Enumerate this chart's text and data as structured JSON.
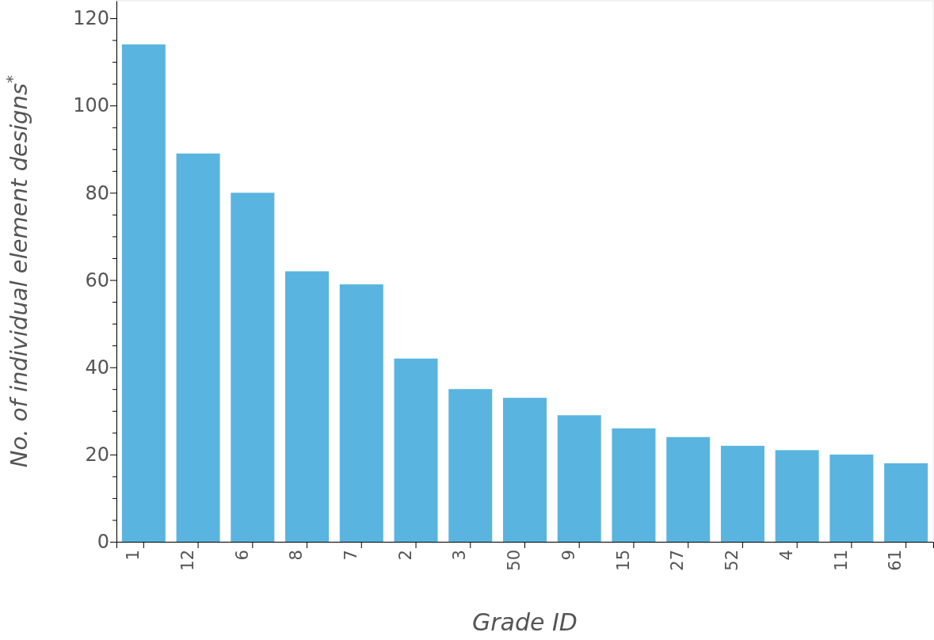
{
  "chart_data": {
    "type": "bar",
    "xlabel": "Grade ID",
    "ylabel": "No. of individual element designs$^{*}$",
    "categories": [
      "1",
      "12",
      "6",
      "8",
      "7",
      "2",
      "3",
      "50",
      "9",
      "15",
      "27",
      "52",
      "4",
      "11",
      "61"
    ],
    "values": [
      114,
      89,
      80,
      62,
      59,
      42,
      35,
      33,
      29,
      26,
      24,
      22,
      21,
      20,
      18
    ],
    "color": "#5ab4e0",
    "ylim": [
      0,
      124
    ],
    "yticks": [
      0,
      {
        "value": 5,
        "label": null
      },
      {
        "value": 10,
        "label": null
      },
      {
        "value": 15,
        "label": null
      },
      20,
      {
        "value": 25,
        "label": null
      },
      {
        "value": 30,
        "label": null
      },
      {
        "value": 35,
        "label": null
      },
      40,
      {
        "value": 45,
        "label": null
      },
      {
        "value": 50,
        "label": null
      },
      {
        "value": 55,
        "label": null
      },
      60,
      {
        "value": 65,
        "label": null
      },
      {
        "value": 70,
        "label": null
      },
      {
        "value": 75,
        "label": null
      },
      80,
      {
        "value": 85,
        "label": null
      },
      {
        "value": 90,
        "label": null
      },
      {
        "value": 95,
        "label": null
      },
      100,
      {
        "value": 105,
        "label": null
      },
      {
        "value": 110,
        "label": null
      },
      {
        "value": 115,
        "label": null
      },
      120
    ],
    "grid": false
  }
}
